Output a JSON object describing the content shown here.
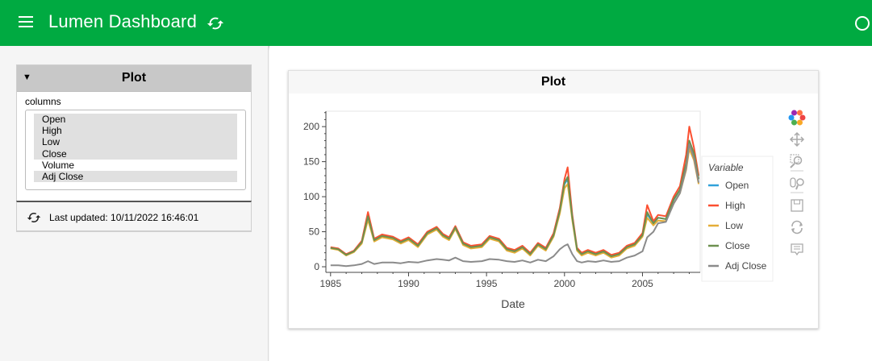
{
  "header": {
    "title": "Lumen Dashboard",
    "menu_icon": "hamburger-menu-icon",
    "refresh_icon": "refresh-icon",
    "busy_icon": "busy-indicator-icon"
  },
  "sidebar": {
    "card_title": "Plot",
    "field_label": "columns",
    "options": [
      {
        "label": "Open",
        "selected": true
      },
      {
        "label": "High",
        "selected": true
      },
      {
        "label": "Low",
        "selected": true
      },
      {
        "label": "Close",
        "selected": true
      },
      {
        "label": "Volume",
        "selected": false
      },
      {
        "label": "Adj Close",
        "selected": true
      }
    ],
    "last_updated": "Last updated: 10/11/2022 16:46:01"
  },
  "main": {
    "card_title": "Plot",
    "toolbar": [
      "bokeh-logo-icon",
      "pan-icon",
      "box-zoom-icon",
      "wheel-zoom-icon",
      "save-icon",
      "reset-icon",
      "hover-icon"
    ]
  },
  "colors": {
    "header_bg": "#00aa41",
    "open": "#30a2da",
    "high": "#fc4f30",
    "low": "#e5ae38",
    "close": "#6d904f",
    "adj_close": "#8b8b8b"
  },
  "chart_data": {
    "type": "line",
    "title": "",
    "xlabel": "Date",
    "ylabel": "",
    "xlim": [
      1984.7,
      2008.7
    ],
    "ylim": [
      -8,
      222
    ],
    "xticks": [
      1985,
      1990,
      1995,
      2000,
      2005
    ],
    "yticks": [
      0,
      50,
      100,
      150,
      200
    ],
    "legend_title": "Variable",
    "legend_position": "right",
    "x": [
      1985.0,
      1985.5,
      1986.0,
      1986.5,
      1987.0,
      1987.4,
      1987.8,
      1988.3,
      1989.0,
      1989.5,
      1990.0,
      1990.6,
      1991.2,
      1991.8,
      1992.2,
      1992.6,
      1993.0,
      1993.5,
      1994.0,
      1994.7,
      1995.2,
      1995.8,
      1996.3,
      1996.8,
      1997.3,
      1997.8,
      1998.3,
      1998.8,
      1999.3,
      1999.7,
      2000.0,
      2000.2,
      2000.5,
      2000.8,
      2001.1,
      2001.5,
      2002.0,
      2002.5,
      2003.0,
      2003.5,
      2004.0,
      2004.5,
      2005.0,
      2005.3,
      2005.7,
      2006.0,
      2006.5,
      2007.0,
      2007.4,
      2007.8,
      2008.0,
      2008.3,
      2008.6
    ],
    "series": [
      {
        "name": "Open",
        "values": [
          27,
          25,
          17,
          22,
          35,
          70,
          38,
          44,
          41,
          35,
          40,
          30,
          48,
          55,
          45,
          40,
          56,
          33,
          28,
          30,
          42,
          38,
          25,
          22,
          28,
          18,
          32,
          25,
          45,
          80,
          118,
          125,
          70,
          25,
          18,
          22,
          18,
          22,
          15,
          18,
          28,
          32,
          45,
          75,
          62,
          70,
          68,
          95,
          110,
          145,
          175,
          160,
          125
        ]
      },
      {
        "name": "High",
        "values": [
          28,
          26,
          18,
          23,
          37,
          78,
          40,
          46,
          43,
          37,
          42,
          32,
          50,
          57,
          47,
          42,
          58,
          35,
          30,
          32,
          44,
          40,
          27,
          24,
          30,
          20,
          34,
          27,
          48,
          84,
          125,
          142,
          74,
          27,
          20,
          24,
          20,
          24,
          17,
          20,
          30,
          34,
          48,
          88,
          65,
          74,
          72,
          100,
          115,
          160,
          200,
          170,
          130
        ]
      },
      {
        "name": "Low",
        "values": [
          26,
          24,
          16,
          21,
          33,
          67,
          36,
          42,
          39,
          33,
          38,
          28,
          46,
          53,
          43,
          38,
          54,
          31,
          26,
          28,
          40,
          36,
          23,
          20,
          26,
          16,
          30,
          23,
          43,
          76,
          112,
          118,
          66,
          23,
          16,
          20,
          16,
          20,
          13,
          16,
          26,
          30,
          43,
          70,
          59,
          66,
          65,
          90,
          105,
          138,
          168,
          152,
          118
        ]
      },
      {
        "name": "Close",
        "values": [
          27,
          25,
          17,
          22,
          35,
          72,
          38,
          44,
          41,
          35,
          40,
          30,
          48,
          55,
          45,
          40,
          56,
          33,
          28,
          30,
          42,
          38,
          25,
          22,
          28,
          18,
          32,
          25,
          45,
          80,
          120,
          128,
          70,
          25,
          18,
          22,
          18,
          22,
          15,
          18,
          28,
          32,
          45,
          78,
          62,
          70,
          68,
          96,
          110,
          148,
          180,
          162,
          125
        ]
      },
      {
        "name": "Adj Close",
        "values": [
          2,
          2,
          1,
          2,
          4,
          8,
          4,
          6,
          6,
          5,
          7,
          6,
          9,
          11,
          10,
          9,
          13,
          8,
          7,
          8,
          11,
          10,
          8,
          7,
          9,
          6,
          10,
          8,
          15,
          25,
          30,
          32,
          18,
          8,
          6,
          8,
          7,
          9,
          7,
          8,
          13,
          16,
          22,
          42,
          50,
          62,
          64,
          90,
          105,
          140,
          175,
          155,
          120
        ]
      }
    ]
  }
}
